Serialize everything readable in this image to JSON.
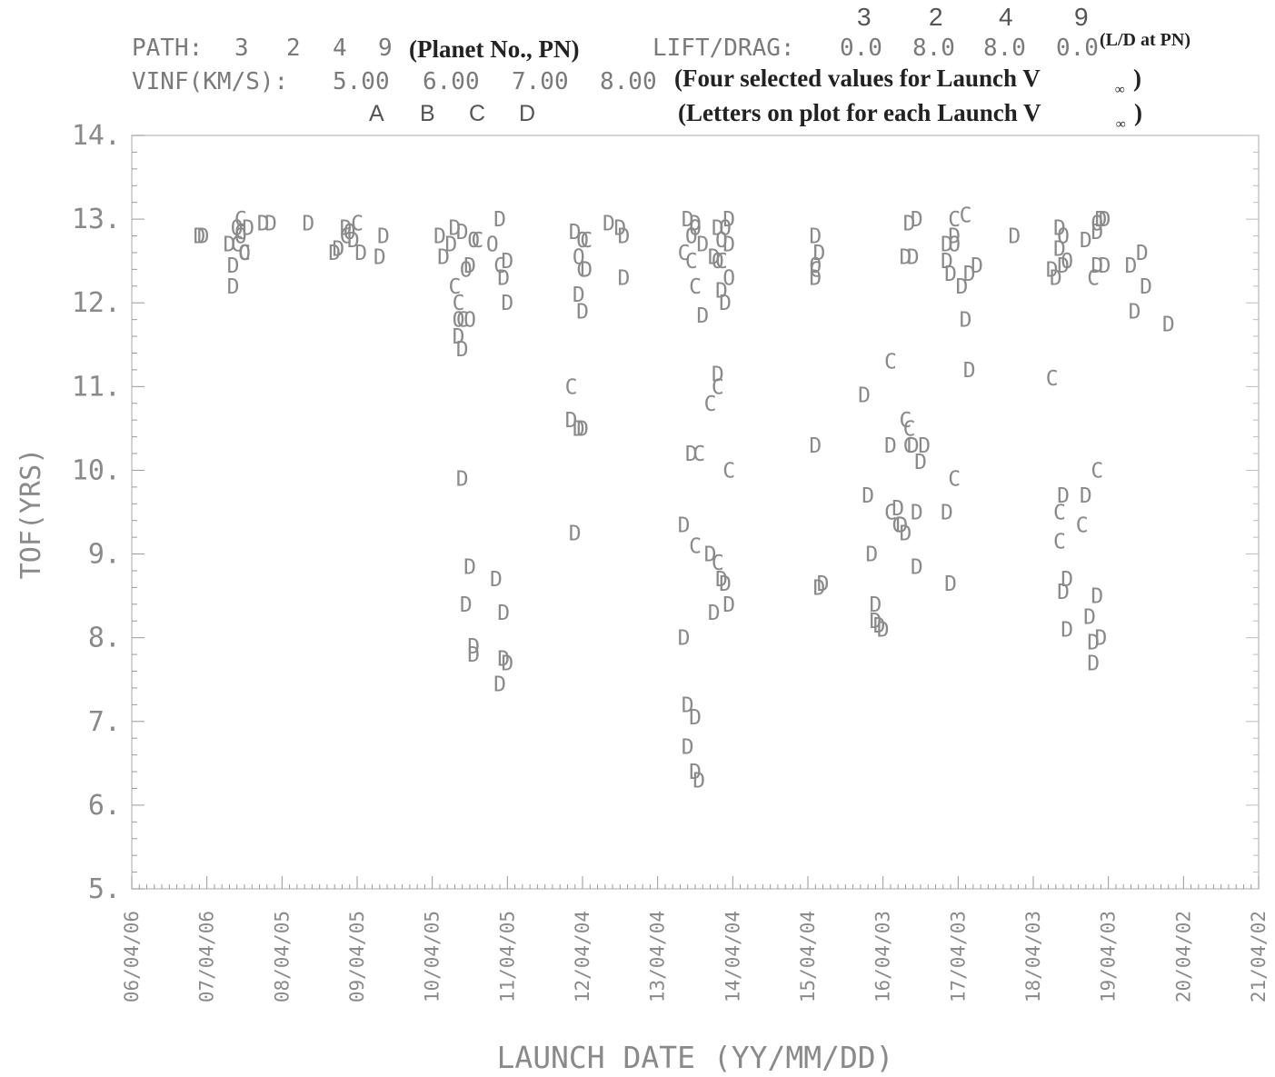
{
  "header": {
    "path_label": "PATH:",
    "path_values": [
      "3",
      "2",
      "4",
      "9"
    ],
    "path_note": "(Planet No., PN)",
    "lift_label": "LIFT/DRAG:",
    "lift_values": [
      "0.0",
      "8.0",
      "8.0",
      "0.0"
    ],
    "lift_note": "(L/D at PN)",
    "lift_planets": [
      "3",
      "2",
      "4",
      "9"
    ],
    "vinf_label": "VINF(KM/S):",
    "vinf_values": [
      "5.00",
      "6.00",
      "7.00",
      "8.00"
    ],
    "vinf_note": "(Four selected values for Launch V",
    "letters": [
      "A",
      "B",
      "C",
      "D"
    ],
    "letters_note": "(Letters on plot for each Launch V",
    "inf_symbol": "∞",
    "close_paren": ")"
  },
  "chart_data": {
    "type": "scatter",
    "xlabel": "LAUNCH DATE (YY/MM/DD)",
    "ylabel": "TOF(YRS)",
    "ylim": [
      5,
      14
    ],
    "yticks": [
      "5.",
      "6.",
      "7.",
      "8.",
      "9.",
      "10.",
      "11.",
      "12.",
      "13.",
      "14."
    ],
    "xlim": [
      6,
      21
    ],
    "xtick_labels": [
      "06/04/06",
      "07/04/06",
      "08/04/05",
      "09/04/05",
      "10/04/05",
      "11/04/05",
      "12/04/04",
      "13/04/04",
      "14/04/04",
      "15/04/04",
      "16/04/03",
      "17/04/03",
      "18/04/03",
      "19/04/03",
      "20/04/02",
      "21/04/02"
    ],
    "x_unit": "launch year (tick = YY/04/DD)",
    "series": [
      {
        "label": "C",
        "points": [
          [
            7.45,
            13.0
          ],
          [
            7.45,
            12.85
          ],
          [
            7.4,
            12.7
          ],
          [
            7.5,
            12.6
          ],
          [
            8.85,
            12.8
          ],
          [
            9.0,
            12.95
          ],
          [
            10.3,
            12.2
          ],
          [
            10.35,
            12.0
          ],
          [
            10.4,
            11.8
          ],
          [
            10.6,
            12.75
          ],
          [
            10.9,
            12.45
          ],
          [
            11.85,
            11.0
          ],
          [
            12.05,
            12.75
          ],
          [
            12.0,
            12.4
          ],
          [
            13.35,
            12.6
          ],
          [
            13.45,
            12.5
          ],
          [
            13.5,
            12.2
          ],
          [
            13.55,
            10.2
          ],
          [
            13.5,
            9.1
          ],
          [
            13.7,
            10.8
          ],
          [
            13.8,
            11.0
          ],
          [
            13.95,
            10.0
          ],
          [
            13.8,
            8.9
          ],
          [
            13.85,
            12.5
          ],
          [
            15.1,
            12.4
          ],
          [
            16.1,
            11.3
          ],
          [
            16.3,
            10.6
          ],
          [
            16.35,
            10.5
          ],
          [
            16.35,
            10.3
          ],
          [
            16.95,
            13.0
          ],
          [
            17.1,
            13.05
          ],
          [
            16.95,
            9.9
          ],
          [
            16.1,
            9.5
          ],
          [
            16.2,
            9.35
          ],
          [
            18.25,
            11.1
          ],
          [
            18.35,
            9.5
          ],
          [
            18.35,
            9.15
          ],
          [
            18.65,
            9.35
          ],
          [
            18.8,
            12.3
          ],
          [
            18.85,
            10.0
          ]
        ]
      },
      {
        "label": "D",
        "points": [
          [
            6.9,
            12.8
          ],
          [
            6.95,
            12.8
          ],
          [
            7.3,
            12.7
          ],
          [
            7.35,
            12.45
          ],
          [
            7.35,
            12.2
          ],
          [
            7.55,
            12.9
          ],
          [
            7.75,
            12.95
          ],
          [
            7.85,
            12.95
          ],
          [
            8.35,
            12.95
          ],
          [
            8.7,
            12.6
          ],
          [
            8.75,
            12.65
          ],
          [
            8.85,
            12.9
          ],
          [
            8.95,
            12.75
          ],
          [
            9.05,
            12.6
          ],
          [
            9.3,
            12.55
          ],
          [
            9.35,
            12.8
          ],
          [
            10.1,
            12.8
          ],
          [
            10.15,
            12.55
          ],
          [
            10.25,
            12.7
          ],
          [
            10.3,
            12.9
          ],
          [
            10.4,
            12.85
          ],
          [
            10.5,
            12.45
          ],
          [
            10.35,
            11.6
          ],
          [
            10.4,
            11.45
          ],
          [
            10.4,
            9.9
          ],
          [
            10.5,
            8.85
          ],
          [
            10.45,
            8.4
          ],
          [
            10.55,
            7.9
          ],
          [
            10.55,
            7.8
          ],
          [
            10.85,
            8.7
          ],
          [
            10.95,
            8.3
          ],
          [
            10.95,
            7.75
          ],
          [
            11.0,
            7.7
          ],
          [
            10.9,
            7.45
          ],
          [
            10.9,
            13.0
          ],
          [
            10.95,
            12.3
          ],
          [
            11.0,
            12.0
          ],
          [
            11.0,
            12.5
          ],
          [
            11.85,
            10.6
          ],
          [
            11.95,
            10.5
          ],
          [
            12.0,
            10.5
          ],
          [
            11.9,
            9.25
          ],
          [
            11.9,
            12.85
          ],
          [
            11.95,
            12.1
          ],
          [
            12.0,
            11.9
          ],
          [
            12.05,
            12.4
          ],
          [
            12.35,
            12.95
          ],
          [
            12.5,
            12.9
          ],
          [
            12.55,
            12.8
          ],
          [
            12.55,
            12.3
          ],
          [
            13.35,
            9.35
          ],
          [
            13.35,
            8.0
          ],
          [
            13.4,
            7.2
          ],
          [
            13.5,
            7.05
          ],
          [
            13.4,
            6.7
          ],
          [
            13.5,
            6.4
          ],
          [
            13.55,
            6.3
          ],
          [
            13.45,
            10.2
          ],
          [
            13.4,
            13.0
          ],
          [
            13.5,
            12.95
          ],
          [
            13.6,
            12.7
          ],
          [
            13.6,
            11.85
          ],
          [
            13.7,
            9.0
          ],
          [
            13.75,
            8.3
          ],
          [
            13.8,
            11.15
          ],
          [
            13.85,
            8.7
          ],
          [
            13.9,
            8.65
          ],
          [
            13.95,
            8.4
          ],
          [
            13.75,
            12.55
          ],
          [
            13.8,
            12.9
          ],
          [
            13.85,
            12.15
          ],
          [
            13.9,
            12.0
          ],
          [
            13.95,
            13.0
          ],
          [
            13.95,
            12.7
          ],
          [
            15.1,
            12.8
          ],
          [
            15.15,
            12.6
          ],
          [
            15.1,
            12.3
          ],
          [
            15.1,
            10.3
          ],
          [
            15.15,
            8.6
          ],
          [
            15.2,
            8.65
          ],
          [
            15.75,
            10.9
          ],
          [
            15.8,
            9.7
          ],
          [
            15.85,
            9.0
          ],
          [
            15.9,
            8.4
          ],
          [
            15.9,
            8.2
          ],
          [
            15.95,
            8.15
          ],
          [
            16.0,
            8.1
          ],
          [
            16.1,
            10.3
          ],
          [
            16.2,
            9.55
          ],
          [
            16.25,
            9.35
          ],
          [
            16.3,
            9.25
          ],
          [
            16.3,
            12.55
          ],
          [
            16.35,
            12.95
          ],
          [
            16.4,
            12.55
          ],
          [
            16.4,
            10.3
          ],
          [
            16.45,
            9.5
          ],
          [
            16.45,
            8.85
          ],
          [
            16.5,
            10.1
          ],
          [
            16.55,
            10.3
          ],
          [
            16.45,
            13.0
          ],
          [
            16.85,
            12.7
          ],
          [
            16.85,
            12.5
          ],
          [
            16.9,
            12.35
          ],
          [
            16.95,
            12.8
          ],
          [
            17.05,
            12.2
          ],
          [
            17.1,
            11.8
          ],
          [
            17.15,
            11.2
          ],
          [
            17.15,
            12.35
          ],
          [
            17.25,
            12.45
          ],
          [
            16.85,
            9.5
          ],
          [
            16.9,
            8.65
          ],
          [
            17.75,
            12.8
          ],
          [
            18.25,
            12.4
          ],
          [
            18.3,
            12.3
          ],
          [
            18.35,
            12.9
          ],
          [
            18.35,
            12.65
          ],
          [
            18.4,
            12.45
          ],
          [
            18.4,
            9.7
          ],
          [
            18.4,
            8.55
          ],
          [
            18.45,
            8.7
          ],
          [
            18.45,
            8.1
          ],
          [
            18.7,
            12.75
          ],
          [
            18.7,
            9.7
          ],
          [
            18.75,
            8.25
          ],
          [
            18.8,
            7.7
          ],
          [
            18.8,
            7.95
          ],
          [
            18.85,
            8.5
          ],
          [
            18.85,
            12.45
          ],
          [
            18.85,
            12.85
          ],
          [
            18.9,
            13.0
          ],
          [
            18.95,
            12.45
          ],
          [
            18.95,
            13.0
          ],
          [
            18.9,
            8.0
          ],
          [
            19.3,
            12.45
          ],
          [
            19.45,
            12.6
          ],
          [
            19.5,
            12.2
          ],
          [
            19.35,
            11.9
          ],
          [
            19.8,
            11.75
          ]
        ]
      },
      {
        "label": "O",
        "points": [
          [
            7.4,
            12.9
          ],
          [
            7.45,
            12.8
          ],
          [
            7.5,
            12.6
          ],
          [
            8.9,
            12.85
          ],
          [
            10.45,
            12.4
          ],
          [
            10.35,
            11.8
          ],
          [
            10.5,
            11.8
          ],
          [
            10.55,
            12.75
          ],
          [
            10.8,
            12.7
          ],
          [
            11.95,
            12.55
          ],
          [
            12.0,
            12.75
          ],
          [
            13.45,
            12.8
          ],
          [
            13.5,
            12.9
          ],
          [
            13.8,
            12.5
          ],
          [
            13.85,
            12.75
          ],
          [
            13.9,
            12.9
          ],
          [
            13.95,
            12.3
          ],
          [
            15.1,
            12.45
          ],
          [
            16.95,
            12.7
          ],
          [
            18.4,
            12.8
          ],
          [
            18.45,
            12.5
          ],
          [
            18.85,
            12.95
          ]
        ]
      }
    ]
  }
}
